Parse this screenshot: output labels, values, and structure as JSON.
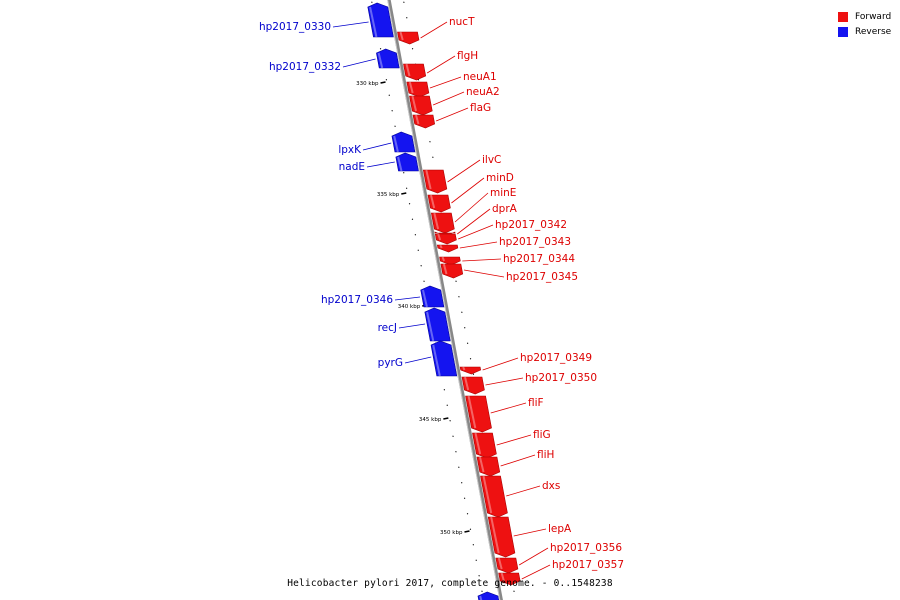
{
  "colors": {
    "forward": "#ee1111",
    "reverse": "#1414f0",
    "backbone": "#888888",
    "line_forward": "#dd0000",
    "line_reverse": "#0000cc"
  },
  "legend": {
    "items": [
      {
        "label": "Forward",
        "color": "#ee1111"
      },
      {
        "label": "Reverse",
        "color": "#1414f0"
      }
    ]
  },
  "caption": "Helicobacter pylori 2017, complete genome. - 0..1548238",
  "ticks": [
    {
      "label": "330 kbp",
      "kbp": 330
    },
    {
      "label": "335 kbp",
      "kbp": 335
    },
    {
      "label": "340 kbp",
      "kbp": 340
    },
    {
      "label": "345 kbp",
      "kbp": 345
    },
    {
      "label": "350 kbp",
      "kbp": 350
    }
  ],
  "genes": [
    {
      "name": "hp2017_0330",
      "strand": "reverse"
    },
    {
      "name": "nucT",
      "strand": "forward"
    },
    {
      "name": "hp2017_0332",
      "strand": "reverse"
    },
    {
      "name": "flgH",
      "strand": "forward"
    },
    {
      "name": "neuA1",
      "strand": "forward"
    },
    {
      "name": "neuA2",
      "strand": "forward"
    },
    {
      "name": "flaG",
      "strand": "forward"
    },
    {
      "name": "lpxK",
      "strand": "reverse"
    },
    {
      "name": "nadE",
      "strand": "reverse"
    },
    {
      "name": "ilvC",
      "strand": "forward"
    },
    {
      "name": "minD",
      "strand": "forward"
    },
    {
      "name": "minE",
      "strand": "forward"
    },
    {
      "name": "dprA",
      "strand": "forward"
    },
    {
      "name": "hp2017_0342",
      "strand": "forward"
    },
    {
      "name": "hp2017_0343",
      "strand": "forward"
    },
    {
      "name": "hp2017_0344",
      "strand": "forward"
    },
    {
      "name": "hp2017_0345",
      "strand": "forward"
    },
    {
      "name": "hp2017_0346",
      "strand": "reverse"
    },
    {
      "name": "recJ",
      "strand": "reverse"
    },
    {
      "name": "pyrG",
      "strand": "reverse"
    },
    {
      "name": "hp2017_0349",
      "strand": "forward"
    },
    {
      "name": "hp2017_0350",
      "strand": "forward"
    },
    {
      "name": "fliF",
      "strand": "forward"
    },
    {
      "name": "fliG",
      "strand": "forward"
    },
    {
      "name": "fliH",
      "strand": "forward"
    },
    {
      "name": "dxs",
      "strand": "forward"
    },
    {
      "name": "lepA",
      "strand": "forward"
    },
    {
      "name": "hp2017_0356",
      "strand": "forward"
    },
    {
      "name": "hp2017_0357",
      "strand": "forward"
    }
  ]
}
